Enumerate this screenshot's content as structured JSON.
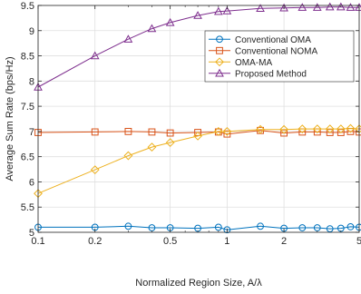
{
  "chart_data": {
    "type": "line",
    "xlabel": "Normalized Region Size, A/λ",
    "ylabel": "Average Sum Rate (bps/Hz)",
    "xscale": "log",
    "xlim": [
      0.1,
      5
    ],
    "ylim": [
      5,
      9.5
    ],
    "xticks": [
      0.1,
      0.2,
      0.5,
      1,
      2,
      5
    ],
    "xtick_labels": [
      "0.1",
      "0.2",
      "0.5",
      "1",
      "2",
      "5"
    ],
    "yticks": [
      5,
      5.5,
      6,
      6.5,
      7,
      7.5,
      8,
      8.5,
      9,
      9.5
    ],
    "ytick_labels": [
      "5",
      "5.5",
      "6",
      "6.5",
      "7",
      "7.5",
      "8",
      "8.5",
      "9",
      "9.5"
    ],
    "grid": true,
    "legend_position": "top-right",
    "series": [
      {
        "name": "Conventional OMA",
        "color": "#0072BD",
        "marker": "circle",
        "x": [
          0.1,
          0.2,
          0.3,
          0.4,
          0.5,
          0.7,
          0.9,
          1.0,
          1.5,
          2.0,
          2.5,
          3.0,
          3.5,
          4.0,
          4.5,
          5.0
        ],
        "y": [
          5.1,
          5.1,
          5.12,
          5.09,
          5.09,
          5.08,
          5.1,
          5.05,
          5.12,
          5.08,
          5.09,
          5.09,
          5.07,
          5.08,
          5.11,
          5.1
        ]
      },
      {
        "name": "Conventional NOMA",
        "color": "#D95319",
        "marker": "square",
        "x": [
          0.1,
          0.2,
          0.3,
          0.4,
          0.5,
          0.7,
          0.9,
          1.0,
          1.5,
          2.0,
          2.5,
          3.0,
          3.5,
          4.0,
          4.5,
          5.0
        ],
        "y": [
          6.98,
          6.99,
          7.0,
          6.99,
          6.97,
          6.98,
          6.99,
          6.95,
          7.02,
          6.97,
          6.99,
          6.99,
          6.98,
          6.98,
          7.0,
          6.99
        ]
      },
      {
        "name": "OMA-MA",
        "color": "#EDB120",
        "marker": "diamond",
        "x": [
          0.1,
          0.2,
          0.3,
          0.4,
          0.5,
          0.7,
          0.9,
          1.0,
          1.5,
          2.0,
          2.5,
          3.0,
          3.5,
          4.0,
          4.5,
          5.0
        ],
        "y": [
          5.77,
          6.24,
          6.52,
          6.69,
          6.78,
          6.91,
          7.0,
          7.0,
          7.04,
          7.04,
          7.05,
          7.05,
          7.05,
          7.05,
          7.06,
          7.05
        ]
      },
      {
        "name": "Proposed Method",
        "color": "#7E2F8E",
        "marker": "triangle",
        "x": [
          0.1,
          0.2,
          0.3,
          0.4,
          0.5,
          0.7,
          0.9,
          1.0,
          1.5,
          2.0,
          2.5,
          3.0,
          3.5,
          4.0,
          4.5,
          5.0
        ],
        "y": [
          7.88,
          8.5,
          8.83,
          9.04,
          9.16,
          9.3,
          9.38,
          9.39,
          9.44,
          9.45,
          9.46,
          9.46,
          9.47,
          9.47,
          9.46,
          9.46
        ]
      }
    ]
  }
}
